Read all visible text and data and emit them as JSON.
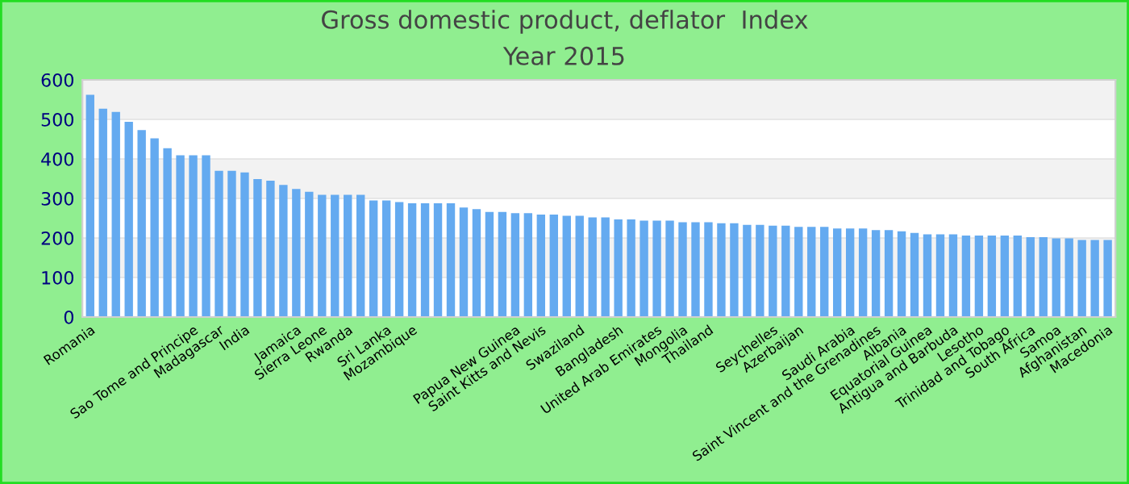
{
  "chart_data": {
    "type": "bar",
    "title": "Gross domestic product, deflator  Index",
    "subtitle": "Year 2015",
    "categories": [
      "Romania",
      null,
      null,
      null,
      null,
      null,
      null,
      null,
      "Sao Tome and Principe",
      null,
      "Madagascar",
      null,
      "India",
      null,
      null,
      null,
      "Jamaica",
      null,
      "Sierra Leone",
      null,
      "Rwanda",
      null,
      null,
      "Sri Lanka",
      null,
      "Mozambique",
      null,
      null,
      null,
      null,
      null,
      null,
      null,
      "Papua New Guinea",
      null,
      "Saint Kitts and Nevis",
      null,
      null,
      "Swaziland",
      null,
      null,
      "Bangladesh",
      null,
      null,
      "United Arab Emirates",
      null,
      "Mongolia",
      null,
      "Thailand",
      null,
      null,
      null,
      null,
      "Seychelles",
      null,
      "Azerbaijan",
      null,
      null,
      null,
      "Saudi Arabia",
      null,
      "Saint Vincent and the Grenadines",
      null,
      "Albania",
      null,
      "Equatorial Guinea",
      null,
      "Antigua and Barbuda",
      null,
      "Lesotho",
      null,
      "Trinidad and Tobago",
      null,
      "South Africa",
      null,
      "Samoa",
      null,
      "Afghanistan",
      null,
      "Macedonia"
    ],
    "values": [
      562,
      527,
      519,
      494,
      473,
      452,
      427,
      409,
      409,
      409,
      370,
      370,
      366,
      349,
      345,
      334,
      324,
      317,
      309,
      309,
      309,
      309,
      295,
      295,
      291,
      288,
      288,
      288,
      288,
      277,
      273,
      266,
      266,
      263,
      263,
      259,
      259,
      256,
      256,
      252,
      252,
      247,
      247,
      244,
      244,
      244,
      240,
      240,
      240,
      237,
      237,
      233,
      233,
      231,
      231,
      228,
      228,
      228,
      224,
      224,
      224,
      220,
      220,
      217,
      213,
      209,
      209,
      209,
      206,
      206,
      206,
      206,
      206,
      202,
      202,
      199,
      199,
      195,
      195,
      195
    ],
    "color": "#64aaf0",
    "ylim": [
      0,
      600
    ],
    "yticks": [
      0,
      100,
      200,
      300,
      400,
      500,
      600
    ],
    "grid": "y"
  }
}
